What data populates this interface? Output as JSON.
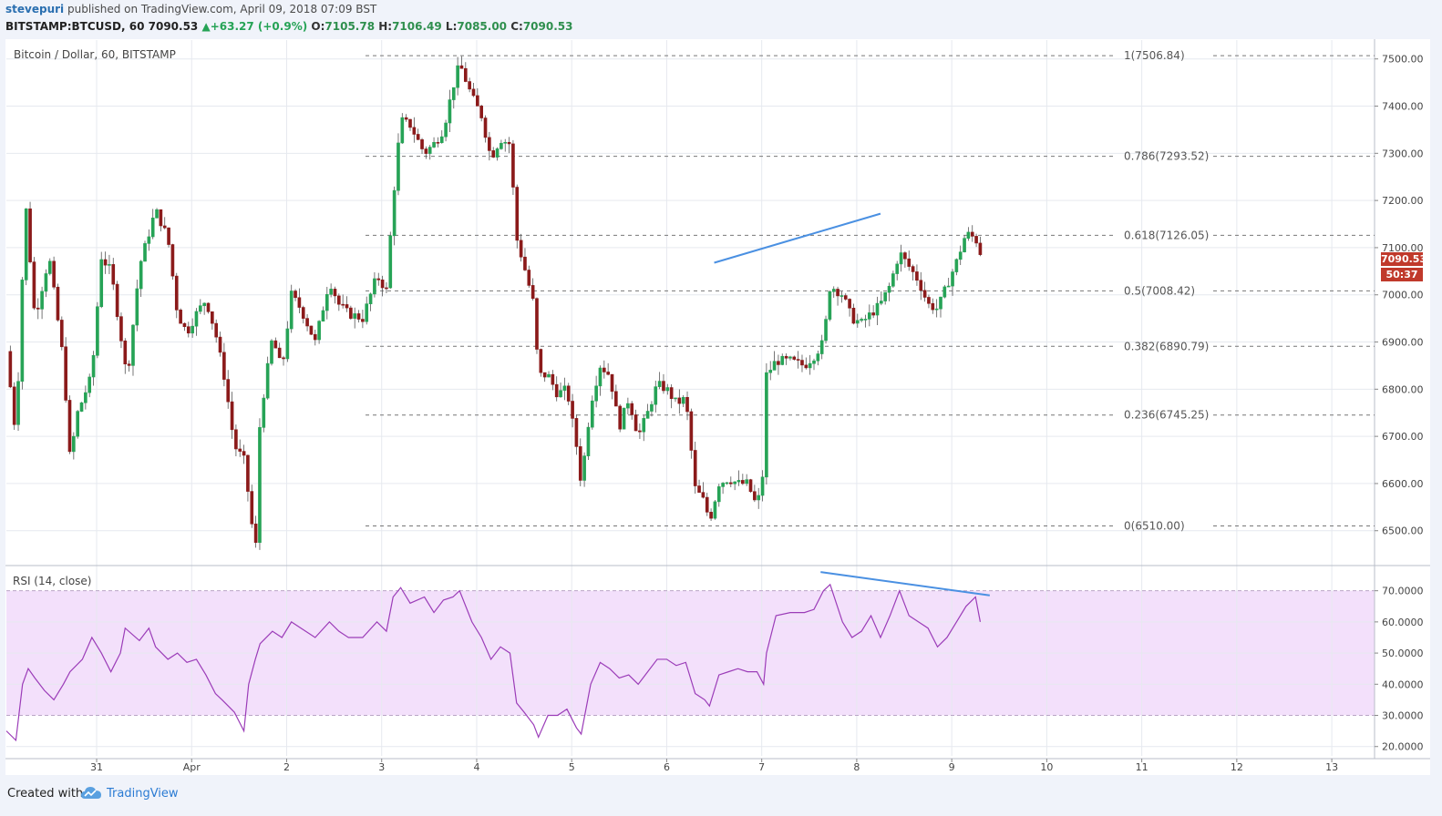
{
  "header": {
    "publisher": "stevepuri",
    "published_text": "published on TradingView.com, April 09, 2018 07:09 BST",
    "symbol": "BITSTAMP:BTCUSD, 60",
    "last": "7090.53",
    "change": "+63.27 (+0.9%)",
    "open_label": "O:",
    "open": "7105.78",
    "high_label": "H:",
    "high": "7106.49",
    "low_label": "L:",
    "low": "7085.00",
    "close_label": "C:",
    "close": "7090.53"
  },
  "price_pane": {
    "title": "Bitcoin / Dollar, 60, BITSTAMP"
  },
  "rsi_pane": {
    "title": "RSI (14, close)"
  },
  "price_tag": {
    "price": "7090.53",
    "countdown": "50:37"
  },
  "footer": {
    "created_with": "Created with",
    "brand": "TradingView"
  },
  "colors": {
    "up": "#26a356",
    "down": "#8b1a1a",
    "trendline": "#4a90e2",
    "rsi_line": "#9b3cb8",
    "rsi_band": "#f3e0fb",
    "price_tag": "#c0392b"
  },
  "chart_data": [
    {
      "type": "candlestick",
      "title": "Bitcoin / Dollar, 60, BITSTAMP",
      "x_ticks": [
        "31",
        "Apr",
        "2",
        "3",
        "4",
        "5",
        "6",
        "7",
        "8",
        "9",
        "10",
        "11",
        "12",
        "13"
      ],
      "y_ticks": [
        "7500.00",
        "7400.00",
        "7300.00",
        "7200.00",
        "7100.00",
        "7000.00",
        "6900.00",
        "6800.00",
        "6700.00",
        "6600.00",
        "6500.00"
      ],
      "ylim": [
        6430,
        7540
      ],
      "x_range_days": [
        -0.95,
        13.45
      ],
      "fib_levels": [
        {
          "label": "1(7506.84)",
          "value": 7506.84
        },
        {
          "label": "0.786(7293.52)",
          "value": 7293.52
        },
        {
          "label": "0.618(7126.05)",
          "value": 7126.05
        },
        {
          "label": "0.5(7008.42)",
          "value": 7008.42
        },
        {
          "label": "0.382(6890.79)",
          "value": 6890.79
        },
        {
          "label": "0.236(6745.25)",
          "value": 6745.25
        },
        {
          "label": "0(6510.00)",
          "value": 6510.0
        }
      ],
      "fib_x_start_day": 2.83,
      "trendline": {
        "x": [
          6.5,
          8.25
        ],
        "y": [
          7068,
          7172
        ]
      },
      "close_path": [
        {
          "x": -0.95,
          "y": 6880
        },
        {
          "x": -0.85,
          "y": 6700
        },
        {
          "x": -0.75,
          "y": 7200
        },
        {
          "x": -0.65,
          "y": 6950
        },
        {
          "x": -0.5,
          "y": 7080
        },
        {
          "x": -0.35,
          "y": 6860
        },
        {
          "x": -0.28,
          "y": 6650
        },
        {
          "x": -0.2,
          "y": 6750
        },
        {
          "x": -0.05,
          "y": 6830
        },
        {
          "x": 0.05,
          "y": 7080
        },
        {
          "x": 0.15,
          "y": 7050
        },
        {
          "x": 0.25,
          "y": 6920
        },
        {
          "x": 0.32,
          "y": 6820
        },
        {
          "x": 0.45,
          "y": 7060
        },
        {
          "x": 0.55,
          "y": 7130
        },
        {
          "x": 0.62,
          "y": 7180
        },
        {
          "x": 0.75,
          "y": 7120
        },
        {
          "x": 0.85,
          "y": 6960
        },
        {
          "x": 0.95,
          "y": 6920
        },
        {
          "x": 1.05,
          "y": 6960
        },
        {
          "x": 1.15,
          "y": 6990
        },
        {
          "x": 1.25,
          "y": 6920
        },
        {
          "x": 1.35,
          "y": 6820
        },
        {
          "x": 1.45,
          "y": 6680
        },
        {
          "x": 1.55,
          "y": 6650
        },
        {
          "x": 1.62,
          "y": 6540
        },
        {
          "x": 1.67,
          "y": 6440
        },
        {
          "x": 1.72,
          "y": 6740
        },
        {
          "x": 1.85,
          "y": 6910
        },
        {
          "x": 1.95,
          "y": 6840
        },
        {
          "x": 2.05,
          "y": 7000
        },
        {
          "x": 2.15,
          "y": 6970
        },
        {
          "x": 2.3,
          "y": 6900
        },
        {
          "x": 2.45,
          "y": 7030
        },
        {
          "x": 2.55,
          "y": 6980
        },
        {
          "x": 2.65,
          "y": 6960
        },
        {
          "x": 2.8,
          "y": 6950
        },
        {
          "x": 2.95,
          "y": 7040
        },
        {
          "x": 3.05,
          "y": 7010
        },
        {
          "x": 3.12,
          "y": 7200
        },
        {
          "x": 3.2,
          "y": 7370
        },
        {
          "x": 3.3,
          "y": 7360
        },
        {
          "x": 3.45,
          "y": 7300
        },
        {
          "x": 3.55,
          "y": 7320
        },
        {
          "x": 3.65,
          "y": 7350
        },
        {
          "x": 3.75,
          "y": 7440
        },
        {
          "x": 3.82,
          "y": 7490
        },
        {
          "x": 3.95,
          "y": 7420
        },
        {
          "x": 4.05,
          "y": 7380
        },
        {
          "x": 4.15,
          "y": 7290
        },
        {
          "x": 4.25,
          "y": 7330
        },
        {
          "x": 4.35,
          "y": 7320
        },
        {
          "x": 4.42,
          "y": 7120
        },
        {
          "x": 4.5,
          "y": 7060
        },
        {
          "x": 4.6,
          "y": 6980
        },
        {
          "x": 4.65,
          "y": 6830
        },
        {
          "x": 4.75,
          "y": 6830
        },
        {
          "x": 4.85,
          "y": 6790
        },
        {
          "x": 4.95,
          "y": 6800
        },
        {
          "x": 5.05,
          "y": 6680
        },
        {
          "x": 5.1,
          "y": 6600
        },
        {
          "x": 5.2,
          "y": 6770
        },
        {
          "x": 5.3,
          "y": 6850
        },
        {
          "x": 5.4,
          "y": 6830
        },
        {
          "x": 5.5,
          "y": 6720
        },
        {
          "x": 5.6,
          "y": 6780
        },
        {
          "x": 5.7,
          "y": 6700
        },
        {
          "x": 5.8,
          "y": 6750
        },
        {
          "x": 5.9,
          "y": 6810
        },
        {
          "x": 6.0,
          "y": 6800
        },
        {
          "x": 6.1,
          "y": 6770
        },
        {
          "x": 6.2,
          "y": 6780
        },
        {
          "x": 6.3,
          "y": 6590
        },
        {
          "x": 6.4,
          "y": 6560
        },
        {
          "x": 6.45,
          "y": 6520
        },
        {
          "x": 6.55,
          "y": 6600
        },
        {
          "x": 6.65,
          "y": 6610
        },
        {
          "x": 6.75,
          "y": 6600
        },
        {
          "x": 6.85,
          "y": 6600
        },
        {
          "x": 6.95,
          "y": 6550
        },
        {
          "x": 7.02,
          "y": 6630
        },
        {
          "x": 7.05,
          "y": 6830
        },
        {
          "x": 7.15,
          "y": 6860
        },
        {
          "x": 7.3,
          "y": 6860
        },
        {
          "x": 7.45,
          "y": 6850
        },
        {
          "x": 7.55,
          "y": 6870
        },
        {
          "x": 7.65,
          "y": 6900
        },
        {
          "x": 7.72,
          "y": 7020
        },
        {
          "x": 7.85,
          "y": 7000
        },
        {
          "x": 7.95,
          "y": 6950
        },
        {
          "x": 8.05,
          "y": 6940
        },
        {
          "x": 8.15,
          "y": 6960
        },
        {
          "x": 8.25,
          "y": 6980
        },
        {
          "x": 8.35,
          "y": 7020
        },
        {
          "x": 8.45,
          "y": 7090
        },
        {
          "x": 8.55,
          "y": 7060
        },
        {
          "x": 8.65,
          "y": 7030
        },
        {
          "x": 8.75,
          "y": 6980
        },
        {
          "x": 8.85,
          "y": 6970
        },
        {
          "x": 8.95,
          "y": 7020
        },
        {
          "x": 9.05,
          "y": 7070
        },
        {
          "x": 9.15,
          "y": 7130
        },
        {
          "x": 9.25,
          "y": 7120
        },
        {
          "x": 9.3,
          "y": 7090
        }
      ]
    },
    {
      "type": "line",
      "title": "RSI (14, close)",
      "y_ticks": [
        "70.0000",
        "60.0000",
        "50.0000",
        "40.0000",
        "30.0000",
        "20.0000"
      ],
      "ylim": [
        17,
        77.5
      ],
      "band": [
        30,
        70
      ],
      "trendline": {
        "x": [
          7.62,
          9.4
        ],
        "y": [
          76,
          68.5
        ]
      },
      "x": [
        -0.95,
        -0.85,
        -0.78,
        -0.72,
        -0.65,
        -0.55,
        -0.45,
        -0.35,
        -0.28,
        -0.15,
        -0.05,
        0.05,
        0.15,
        0.25,
        0.3,
        0.45,
        0.55,
        0.62,
        0.75,
        0.85,
        0.95,
        1.05,
        1.15,
        1.25,
        1.32,
        1.45,
        1.55,
        1.6,
        1.67,
        1.72,
        1.85,
        1.95,
        2.05,
        2.15,
        2.3,
        2.45,
        2.55,
        2.65,
        2.8,
        2.95,
        3.05,
        3.12,
        3.2,
        3.3,
        3.45,
        3.55,
        3.65,
        3.75,
        3.82,
        3.95,
        4.05,
        4.15,
        4.25,
        4.35,
        4.42,
        4.5,
        4.6,
        4.65,
        4.75,
        4.85,
        4.95,
        5.05,
        5.1,
        5.2,
        5.3,
        5.4,
        5.5,
        5.6,
        5.7,
        5.8,
        5.9,
        6.0,
        6.1,
        6.2,
        6.3,
        6.4,
        6.45,
        6.55,
        6.65,
        6.75,
        6.85,
        6.95,
        7.02,
        7.05,
        7.15,
        7.3,
        7.45,
        7.55,
        7.65,
        7.72,
        7.85,
        7.95,
        8.05,
        8.15,
        8.25,
        8.35,
        8.45,
        8.55,
        8.65,
        8.75,
        8.85,
        8.95,
        9.05,
        9.15,
        9.25,
        9.3
      ],
      "y": [
        25,
        22,
        40,
        45,
        42,
        38,
        35,
        40,
        44,
        48,
        55,
        50,
        44,
        50,
        58,
        54,
        58,
        52,
        48,
        50,
        47,
        48,
        43,
        37,
        35,
        31,
        25,
        40,
        48,
        53,
        57,
        55,
        60,
        58,
        55,
        60,
        57,
        55,
        55,
        60,
        57,
        68,
        71,
        66,
        68,
        63,
        67,
        68,
        70,
        60,
        55,
        48,
        52,
        50,
        34,
        31,
        27,
        23,
        30,
        30,
        32,
        26,
        24,
        40,
        47,
        45,
        42,
        43,
        40,
        44,
        48,
        48,
        46,
        47,
        37,
        35,
        33,
        43,
        44,
        45,
        44,
        44,
        40,
        50,
        62,
        63,
        63,
        64,
        70,
        72,
        60,
        55,
        57,
        62,
        55,
        62,
        70,
        62,
        60,
        58,
        52,
        55,
        60,
        65,
        68,
        60
      ]
    }
  ]
}
